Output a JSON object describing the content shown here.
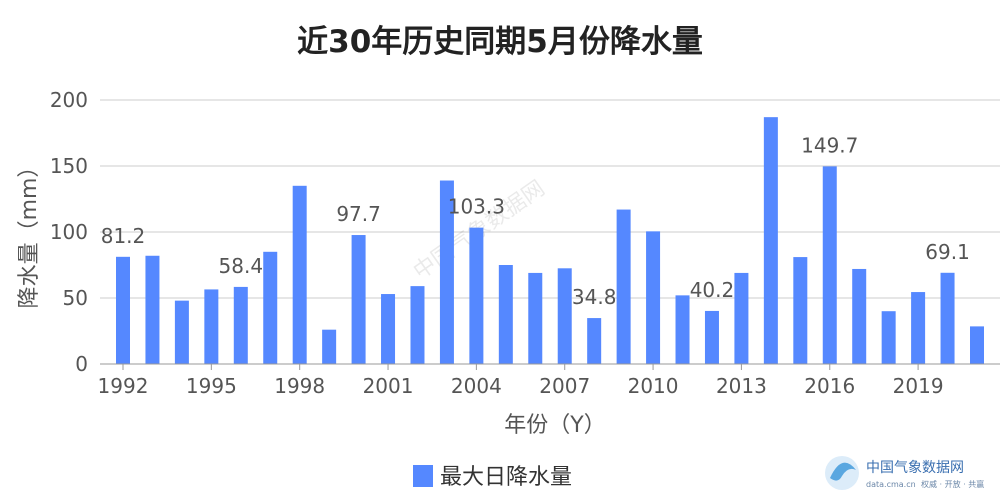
{
  "chart_data": {
    "type": "bar",
    "title": "近30年历史同期5月份降水量",
    "xlabel": "年份（Y）",
    "ylabel": "降水量（mm）",
    "ylim": [
      0,
      200
    ],
    "y_ticks": [
      0,
      50,
      100,
      150,
      200
    ],
    "x": [
      1992,
      1993,
      1994,
      1995,
      1996,
      1997,
      1998,
      1999,
      2000,
      2001,
      2002,
      2003,
      2004,
      2005,
      2006,
      2007,
      2008,
      2009,
      2010,
      2011,
      2012,
      2013,
      2014,
      2015,
      2016,
      2017,
      2018,
      2019,
      2020,
      2021
    ],
    "x_tick_labels": [
      "1992",
      "1995",
      "1998",
      "2001",
      "2004",
      "2007",
      "2010",
      "2013",
      "2016",
      "2019"
    ],
    "series": [
      {
        "name": "最大日降水量",
        "color": "#5588ff",
        "values": [
          81.2,
          82,
          48,
          56.5,
          58.4,
          85,
          135,
          26,
          97.7,
          53,
          59,
          139,
          103.3,
          75,
          69,
          72.5,
          34.8,
          117,
          100.5,
          52,
          40.2,
          69,
          187,
          81,
          149.7,
          72,
          40,
          54.5,
          69.1,
          28.5
        ]
      }
    ],
    "data_labels": [
      {
        "x": 1992,
        "text": "81.2"
      },
      {
        "x": 1996,
        "text": "58.4"
      },
      {
        "x": 2000,
        "text": "97.7"
      },
      {
        "x": 2004,
        "text": "103.3"
      },
      {
        "x": 2008,
        "text": "34.8"
      },
      {
        "x": 2012,
        "text": "40.2"
      },
      {
        "x": 2016,
        "text": "149.7"
      },
      {
        "x": 2020,
        "text": "69.1"
      }
    ],
    "grid": true,
    "legend": "bottom-center"
  },
  "watermark": "中国气象数据网",
  "logo": {
    "name": "中国气象数据网",
    "url": "data.cma.cn",
    "slogan": "权威 · 开放 · 共赢"
  }
}
